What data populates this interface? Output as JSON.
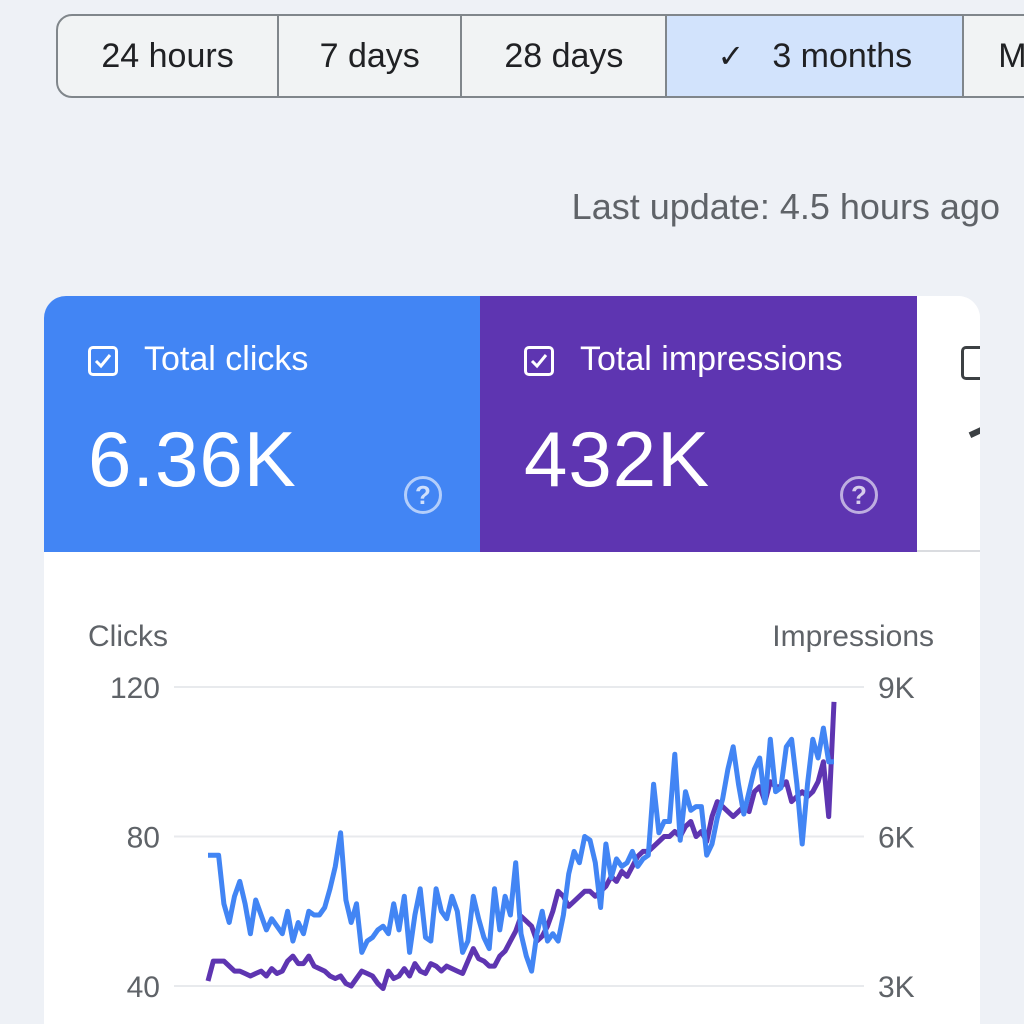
{
  "date_range": {
    "options": [
      "24 hours",
      "7 days",
      "28 days",
      "3 months",
      "M"
    ],
    "selected_index": 3
  },
  "last_update": "Last update: 4.5 hours ago",
  "metrics": {
    "clicks": {
      "label": "Total clicks",
      "value": "6.36K",
      "checked": true,
      "help": "?"
    },
    "impressions": {
      "label": "Total impressions",
      "value": "432K",
      "checked": true,
      "help": "?"
    }
  },
  "colors": {
    "clicks": "#4285f4",
    "impressions": "#5e35b1",
    "selected_range": "#d2e3fc"
  },
  "chart_data": {
    "type": "line",
    "y_left": {
      "label": "Clicks",
      "ticks": [
        "120",
        "80",
        "40"
      ],
      "range": [
        40,
        120
      ]
    },
    "y_right": {
      "label": "Impressions",
      "ticks": [
        "9K",
        "6K",
        "3K"
      ],
      "range": [
        3000,
        9000
      ]
    },
    "grid": true,
    "series": [
      {
        "name": "Clicks",
        "color": "#4285f4",
        "values": [
          75,
          75,
          75,
          62,
          57,
          64,
          68,
          62,
          54,
          63,
          59,
          55,
          58,
          56,
          54,
          60,
          52,
          57,
          54,
          60,
          59,
          59,
          61,
          66,
          72,
          81,
          63,
          57,
          62,
          49,
          52,
          53,
          55,
          56,
          54,
          62,
          55,
          64,
          49,
          59,
          66,
          53,
          52,
          66,
          60,
          58,
          64,
          60,
          49,
          52,
          64,
          58,
          53,
          50,
          66,
          55,
          64,
          59,
          73,
          54,
          48,
          44,
          54,
          60,
          52,
          54,
          52,
          59,
          70,
          76,
          73,
          80,
          79,
          73,
          61,
          78,
          69,
          74,
          72,
          73,
          76,
          72,
          74,
          75,
          94,
          81,
          84,
          84,
          102,
          79,
          92,
          87,
          88,
          88,
          75,
          78,
          85,
          90,
          98,
          104,
          94,
          86,
          92,
          98,
          101,
          89,
          106,
          92,
          93,
          104,
          106,
          94,
          78,
          94,
          106,
          101,
          109,
          100,
          100
        ],
        "x": [
          0,
          1,
          2,
          3,
          4,
          5,
          6,
          7,
          8,
          9,
          10,
          11,
          12,
          13,
          14,
          15,
          16,
          17,
          18,
          19,
          20,
          21,
          22,
          23,
          24,
          25,
          26,
          27,
          28,
          29,
          30,
          31,
          32,
          33,
          34,
          35,
          36,
          37,
          38,
          39,
          40,
          41,
          42,
          43,
          44,
          45,
          46,
          47,
          48,
          49,
          50,
          51,
          52,
          53,
          54,
          55,
          56,
          57,
          58,
          59,
          60,
          61,
          62,
          63,
          64,
          65,
          66,
          67,
          68,
          69,
          70,
          71,
          72,
          73,
          74,
          75,
          76,
          77,
          78,
          79,
          80,
          81,
          82,
          83,
          84,
          85,
          86,
          87,
          88,
          89,
          90,
          91,
          92,
          93,
          94,
          95,
          96,
          97,
          98,
          99,
          100,
          101,
          102,
          103,
          104,
          105,
          106,
          107,
          108,
          109,
          110,
          111,
          112,
          113,
          114,
          115,
          116,
          117,
          118
        ]
      },
      {
        "name": "Impressions",
        "color": "#5e35b1",
        "values": [
          3100,
          3500,
          3500,
          3500,
          3400,
          3300,
          3300,
          3250,
          3200,
          3250,
          3300,
          3200,
          3350,
          3250,
          3300,
          3500,
          3600,
          3450,
          3450,
          3600,
          3400,
          3350,
          3300,
          3200,
          3150,
          3200,
          3050,
          3000,
          3150,
          3300,
          3250,
          3200,
          3050,
          2950,
          3300,
          3150,
          3200,
          3350,
          3200,
          3450,
          3300,
          3250,
          3450,
          3400,
          3300,
          3400,
          3350,
          3300,
          3250,
          3500,
          3750,
          3550,
          3500,
          3400,
          3400,
          3600,
          3700,
          3900,
          4100,
          4400,
          4300,
          4200,
          3900,
          4000,
          4200,
          4500,
          4900,
          4800,
          4600,
          4700,
          4800,
          4900,
          4900,
          4800,
          4900,
          5000,
          5200,
          5100,
          5300,
          5200,
          5400,
          5600,
          5700,
          5700,
          5800,
          5900,
          6000,
          6000,
          6100,
          6000,
          6200,
          6300,
          6000,
          6100,
          5900,
          6400,
          6700,
          6600,
          6500,
          6400,
          6500,
          6600,
          6500,
          6900,
          7000,
          6700,
          7100,
          7000,
          7000,
          7100,
          6700,
          6800,
          6900,
          6800,
          6900,
          7100,
          7500,
          6400,
          8700
        ],
        "x": [
          0,
          1,
          2,
          3,
          4,
          5,
          6,
          7,
          8,
          9,
          10,
          11,
          12,
          13,
          14,
          15,
          16,
          17,
          18,
          19,
          20,
          21,
          22,
          23,
          24,
          25,
          26,
          27,
          28,
          29,
          30,
          31,
          32,
          33,
          34,
          35,
          36,
          37,
          38,
          39,
          40,
          41,
          42,
          43,
          44,
          45,
          46,
          47,
          48,
          49,
          50,
          51,
          52,
          53,
          54,
          55,
          56,
          57,
          58,
          59,
          60,
          61,
          62,
          63,
          64,
          65,
          66,
          67,
          68,
          69,
          70,
          71,
          72,
          73,
          74,
          75,
          76,
          77,
          78,
          79,
          80,
          81,
          82,
          83,
          84,
          85,
          86,
          87,
          88,
          89,
          90,
          91,
          92,
          93,
          94,
          95,
          96,
          97,
          98,
          99,
          100,
          101,
          102,
          103,
          104,
          105,
          106,
          107,
          108,
          109,
          110,
          111,
          112,
          113,
          114,
          115,
          116,
          117,
          118
        ]
      }
    ]
  }
}
